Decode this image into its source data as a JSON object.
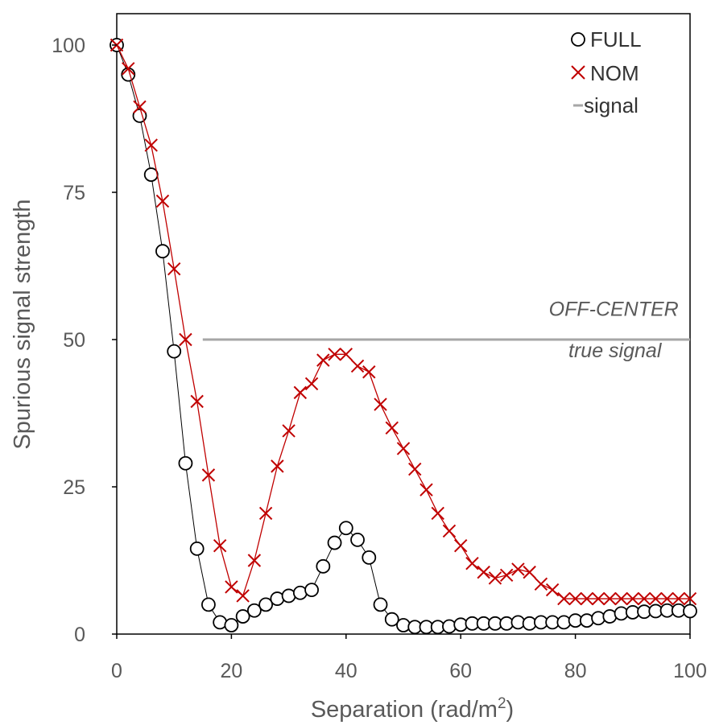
{
  "chart_data": {
    "type": "line",
    "title": "",
    "xlabel": "Separation (rad/m",
    "xlabel_sup": "2",
    "xlabel_close": ")",
    "ylabel": "Spurious signal strength",
    "xlim": [
      0,
      100
    ],
    "ylim": [
      0,
      100
    ],
    "x_ticks": [
      0,
      20,
      40,
      60,
      80,
      100
    ],
    "y_ticks": [
      0,
      25,
      50,
      75,
      100
    ],
    "grid": false,
    "legend_position": "top-right",
    "series": [
      {
        "name": "FULL",
        "marker": "circle",
        "color": "#000000",
        "label_color": "#333333",
        "x": [
          0,
          2,
          4,
          6,
          8,
          10,
          12,
          14,
          16,
          18,
          20,
          22,
          24,
          26,
          28,
          30,
          32,
          34,
          36,
          38,
          40,
          42,
          44,
          46,
          48,
          50,
          52,
          54,
          56,
          58,
          60,
          62,
          64,
          66,
          68,
          70,
          72,
          74,
          76,
          78,
          80,
          82,
          84,
          86,
          88,
          90,
          92,
          94,
          96,
          98,
          100
        ],
        "y": [
          100,
          95,
          88,
          78,
          65,
          48,
          29,
          14.5,
          5,
          2,
          1.5,
          3,
          4,
          5,
          6,
          6.5,
          7,
          7.5,
          11.5,
          15.5,
          18,
          16,
          13,
          5,
          2.5,
          1.5,
          1.2,
          1.2,
          1.2,
          1.3,
          1.6,
          1.8,
          1.8,
          1.8,
          1.8,
          2,
          1.8,
          2,
          2,
          2,
          2.3,
          2.3,
          2.7,
          3,
          3.5,
          3.7,
          3.8,
          3.9,
          4,
          4,
          3.9
        ]
      },
      {
        "name": "NOM",
        "marker": "x",
        "color": "#C00000",
        "label_color": "#C00000",
        "x": [
          0,
          2,
          4,
          6,
          8,
          10,
          12,
          14,
          16,
          18,
          20,
          22,
          24,
          26,
          28,
          30,
          32,
          34,
          36,
          38,
          40,
          42,
          44,
          46,
          48,
          50,
          52,
          54,
          56,
          58,
          60,
          62,
          64,
          66,
          68,
          70,
          72,
          74,
          76,
          78,
          80,
          82,
          84,
          86,
          88,
          90,
          92,
          94,
          96,
          98,
          100
        ],
        "y": [
          100,
          96,
          89.5,
          83,
          73.5,
          62,
          50,
          39.5,
          27,
          15,
          8,
          6.5,
          12.5,
          20.5,
          28.5,
          34.5,
          41,
          42.5,
          46.5,
          47.5,
          47.5,
          45.5,
          44.5,
          39,
          35,
          31.5,
          28,
          24.5,
          20.5,
          17.5,
          15,
          12,
          10.5,
          9.5,
          10,
          11,
          10.5,
          8.5,
          7.5,
          6,
          6,
          6,
          6,
          6,
          6,
          6,
          6,
          6,
          6,
          6,
          6
        ]
      },
      {
        "name": "signal",
        "marker": "line",
        "color": "#A6A6A6",
        "label_color": "#333333",
        "x": [
          15,
          100
        ],
        "y": [
          50,
          50
        ]
      }
    ],
    "annotations": [
      {
        "text": "OFF-CENTER",
        "x": 98,
        "y": 54
      },
      {
        "text": "true signal",
        "x": 95,
        "y": 47
      }
    ]
  }
}
